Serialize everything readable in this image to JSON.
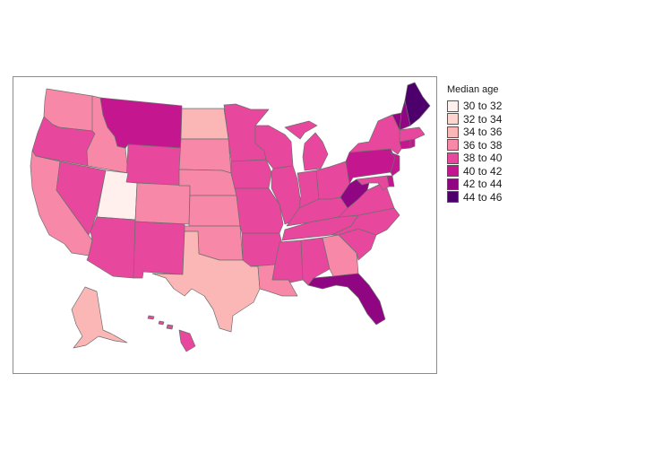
{
  "legend": {
    "title": "Median age",
    "bins": [
      {
        "label": "30 to 32",
        "color": "#fff0ee"
      },
      {
        "label": "32 to 34",
        "color": "#fdd5ce"
      },
      {
        "label": "34 to 36",
        "color": "#fbb6b6"
      },
      {
        "label": "36 to 38",
        "color": "#f788a8"
      },
      {
        "label": "38 to 40",
        "color": "#e8479e"
      },
      {
        "label": "40 to 42",
        "color": "#c4168f"
      },
      {
        "label": "42 to 44",
        "color": "#8f0582"
      },
      {
        "label": "44 to 46",
        "color": "#4d006b"
      }
    ]
  },
  "chart_data": {
    "type": "choropleth",
    "variable": "Median age",
    "states": [
      {
        "state": "Washington",
        "bin": "36 to 38"
      },
      {
        "state": "Oregon",
        "bin": "38 to 40"
      },
      {
        "state": "California",
        "bin": "36 to 38"
      },
      {
        "state": "Nevada",
        "bin": "38 to 40"
      },
      {
        "state": "Idaho",
        "bin": "36 to 38"
      },
      {
        "state": "Montana",
        "bin": "40 to 42"
      },
      {
        "state": "Wyoming",
        "bin": "38 to 40"
      },
      {
        "state": "Utah",
        "bin": "30 to 32"
      },
      {
        "state": "Arizona",
        "bin": "38 to 40"
      },
      {
        "state": "Colorado",
        "bin": "36 to 38"
      },
      {
        "state": "New Mexico",
        "bin": "38 to 40"
      },
      {
        "state": "North Dakota",
        "bin": "34 to 36"
      },
      {
        "state": "South Dakota",
        "bin": "36 to 38"
      },
      {
        "state": "Nebraska",
        "bin": "36 to 38"
      },
      {
        "state": "Kansas",
        "bin": "36 to 38"
      },
      {
        "state": "Oklahoma",
        "bin": "36 to 38"
      },
      {
        "state": "Texas",
        "bin": "34 to 36"
      },
      {
        "state": "Minnesota",
        "bin": "38 to 40"
      },
      {
        "state": "Iowa",
        "bin": "38 to 40"
      },
      {
        "state": "Missouri",
        "bin": "38 to 40"
      },
      {
        "state": "Arkansas",
        "bin": "38 to 40"
      },
      {
        "state": "Louisiana",
        "bin": "36 to 38"
      },
      {
        "state": "Wisconsin",
        "bin": "38 to 40"
      },
      {
        "state": "Illinois",
        "bin": "38 to 40"
      },
      {
        "state": "Michigan",
        "bin": "38 to 40"
      },
      {
        "state": "Indiana",
        "bin": "38 to 40"
      },
      {
        "state": "Ohio",
        "bin": "38 to 40"
      },
      {
        "state": "Kentucky",
        "bin": "38 to 40"
      },
      {
        "state": "Tennessee",
        "bin": "38 to 40"
      },
      {
        "state": "Mississippi",
        "bin": "38 to 40"
      },
      {
        "state": "Alabama",
        "bin": "38 to 40"
      },
      {
        "state": "Georgia",
        "bin": "36 to 38"
      },
      {
        "state": "Florida",
        "bin": "42 to 44"
      },
      {
        "state": "South Carolina",
        "bin": "38 to 40"
      },
      {
        "state": "North Carolina",
        "bin": "38 to 40"
      },
      {
        "state": "Virginia",
        "bin": "38 to 40"
      },
      {
        "state": "West Virginia",
        "bin": "42 to 44"
      },
      {
        "state": "Pennsylvania",
        "bin": "40 to 42"
      },
      {
        "state": "New York",
        "bin": "38 to 40"
      },
      {
        "state": "New Jersey",
        "bin": "40 to 42"
      },
      {
        "state": "Delaware",
        "bin": "40 to 42"
      },
      {
        "state": "Maryland",
        "bin": "38 to 40"
      },
      {
        "state": "Connecticut",
        "bin": "40 to 42"
      },
      {
        "state": "Rhode Island",
        "bin": "40 to 42"
      },
      {
        "state": "Massachusetts",
        "bin": "38 to 40"
      },
      {
        "state": "Vermont",
        "bin": "42 to 44"
      },
      {
        "state": "New Hampshire",
        "bin": "42 to 44"
      },
      {
        "state": "Maine",
        "bin": "44 to 46"
      },
      {
        "state": "Alaska",
        "bin": "34 to 36"
      },
      {
        "state": "Hawaii",
        "bin": "38 to 40"
      }
    ]
  }
}
